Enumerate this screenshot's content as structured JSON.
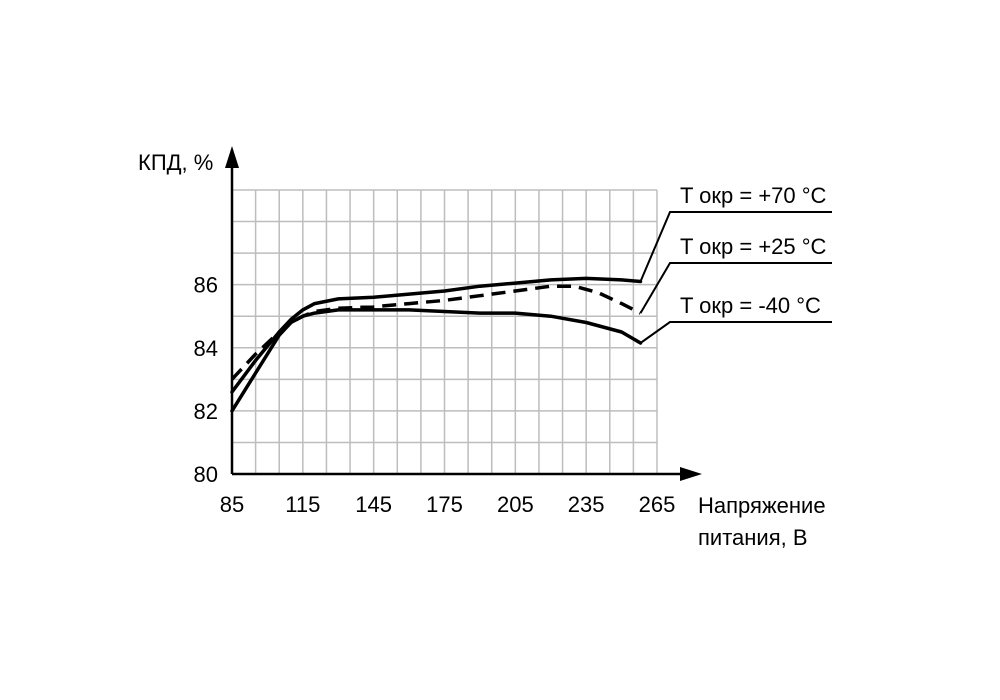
{
  "chart_data": {
    "type": "line",
    "ylabel": "КПД, %",
    "xlabel_line1": "Напряжение",
    "xlabel_line2": "питания, В",
    "xlim": [
      85,
      265
    ],
    "ylim": [
      80,
      89
    ],
    "x_ticks": [
      85,
      115,
      145,
      175,
      205,
      235,
      265
    ],
    "y_ticks": [
      80,
      82,
      84,
      86
    ],
    "grid": true,
    "series": [
      {
        "name": "T окр  = +70 °C",
        "style": "solid",
        "x": [
          85,
          95,
          105,
          110,
          115,
          120,
          130,
          145,
          160,
          175,
          190,
          205,
          220,
          235,
          250,
          258
        ],
        "y": [
          82.6,
          83.6,
          84.5,
          84.9,
          85.2,
          85.4,
          85.55,
          85.6,
          85.7,
          85.8,
          85.95,
          86.05,
          86.15,
          86.2,
          86.15,
          86.1
        ]
      },
      {
        "name": "T окр  = +25 °C",
        "style": "dashed",
        "x": [
          85,
          95,
          105,
          110,
          115,
          120,
          130,
          145,
          160,
          175,
          190,
          205,
          220,
          230,
          240,
          250,
          258
        ],
        "y": [
          83.0,
          83.8,
          84.5,
          84.8,
          85.0,
          85.15,
          85.25,
          85.3,
          85.4,
          85.5,
          85.65,
          85.8,
          85.95,
          85.95,
          85.75,
          85.4,
          85.1
        ]
      },
      {
        "name": "T окр  = -40 °C",
        "style": "solid",
        "x": [
          85,
          95,
          105,
          110,
          115,
          120,
          130,
          145,
          160,
          175,
          190,
          205,
          220,
          235,
          250,
          258
        ],
        "y": [
          82.0,
          83.2,
          84.4,
          84.8,
          85.0,
          85.1,
          85.2,
          85.2,
          85.2,
          85.15,
          85.1,
          85.1,
          85.0,
          84.8,
          84.5,
          84.15
        ]
      }
    ]
  }
}
